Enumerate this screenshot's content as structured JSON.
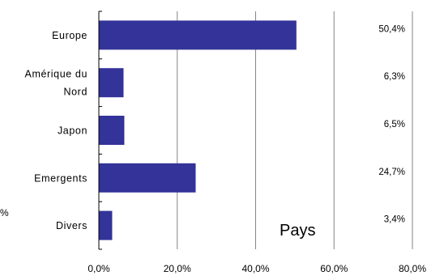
{
  "chart_data": {
    "type": "bar",
    "orientation": "horizontal",
    "categories": [
      "Europe",
      "Amérique du Nord",
      "Japon",
      "Emergents",
      "Divers"
    ],
    "category_lines": [
      [
        "Europe"
      ],
      [
        "Amérique du",
        "Nord"
      ],
      [
        "Japon"
      ],
      [
        "Emergents"
      ],
      [
        "Divers"
      ]
    ],
    "values": [
      50.4,
      6.3,
      6.5,
      24.7,
      3.4
    ],
    "data_labels": [
      "50,4%",
      "6,3%",
      "6,5%",
      "24,7%",
      "3,4%"
    ],
    "xlim": [
      0,
      80
    ],
    "x_ticks": [
      0,
      20,
      40,
      60,
      80
    ],
    "x_tick_labels": [
      "0,0%",
      "20,0%",
      "40,0%",
      "60,0%",
      "80,0%"
    ],
    "annotation": "Pays",
    "stray_label": "%",
    "grid": "vertical",
    "legend": "none",
    "title": "",
    "xlabel": "",
    "ylabel": ""
  },
  "colors": {
    "bar": "#333399",
    "grid": "#868686",
    "axis": "#000000"
  }
}
